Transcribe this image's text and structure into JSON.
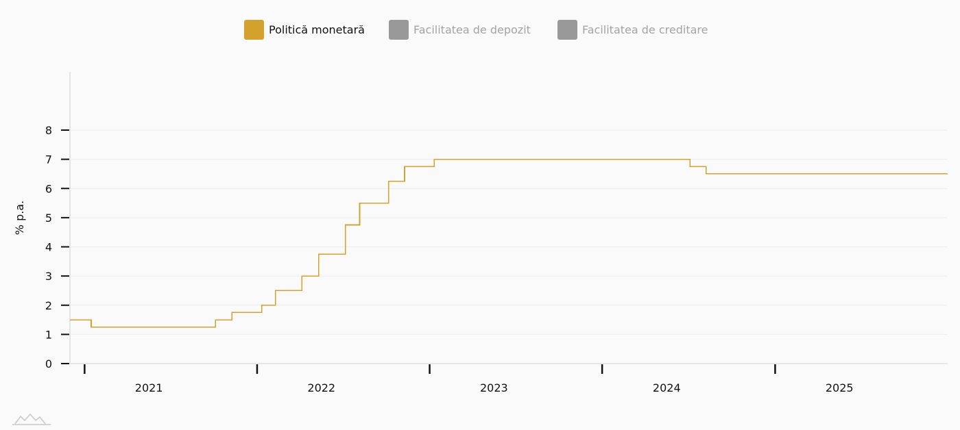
{
  "legend": {
    "items": [
      {
        "label": "Politică monetară",
        "color": "#d4a12c",
        "active": true
      },
      {
        "label": "Facilitatea de depozit",
        "color": "#999999",
        "active": false
      },
      {
        "label": "Facilitatea de creditare",
        "color": "#999999",
        "active": false
      }
    ]
  },
  "chart_data": {
    "type": "line",
    "step": true,
    "ylabel": "% p.a.",
    "xlabel": "",
    "ylim": [
      0,
      8
    ],
    "yticks": [
      "0",
      "1",
      "2",
      "3",
      "4",
      "5",
      "6",
      "7",
      "8"
    ],
    "xticks": [
      "2021",
      "2022",
      "2023",
      "2024",
      "2025"
    ],
    "grid": true,
    "legend_position": "top",
    "series": [
      {
        "name": "Politică monetară",
        "color": "#d4a12c",
        "points": [
          {
            "x": "2020-12-01",
            "y": 1.5
          },
          {
            "x": "2021-01-15",
            "y": 1.25
          },
          {
            "x": "2021-10-05",
            "y": 1.5
          },
          {
            "x": "2021-11-09",
            "y": 1.75
          },
          {
            "x": "2022-01-11",
            "y": 2.0
          },
          {
            "x": "2022-02-09",
            "y": 2.5
          },
          {
            "x": "2022-04-06",
            "y": 3.0
          },
          {
            "x": "2022-05-11",
            "y": 3.75
          },
          {
            "x": "2022-07-07",
            "y": 4.75
          },
          {
            "x": "2022-08-06",
            "y": 5.5
          },
          {
            "x": "2022-10-06",
            "y": 6.25
          },
          {
            "x": "2022-11-09",
            "y": 6.75
          },
          {
            "x": "2023-01-11",
            "y": 7.0
          },
          {
            "x": "2024-07-05",
            "y": 6.75
          },
          {
            "x": "2024-08-08",
            "y": 6.5
          },
          {
            "x": "2026-01-01",
            "y": 6.5
          }
        ]
      }
    ]
  }
}
